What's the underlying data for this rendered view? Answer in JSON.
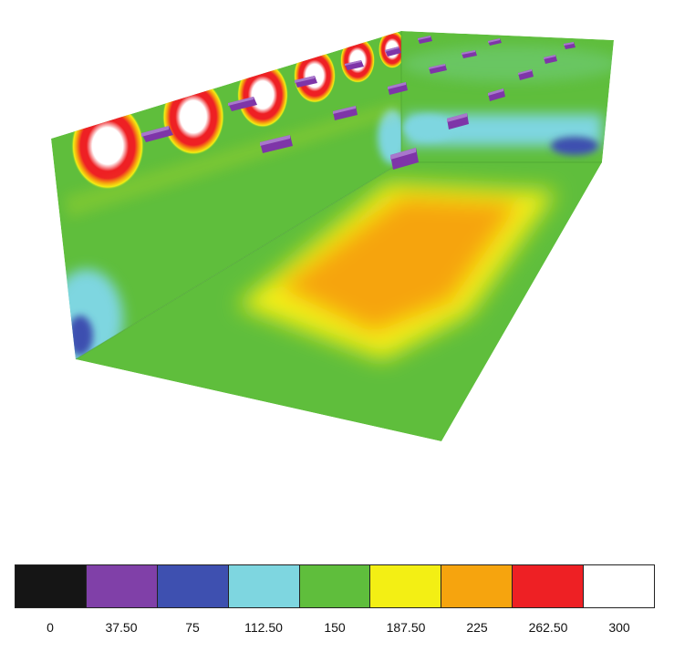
{
  "figure": {
    "palette": {
      "black": "#151515",
      "purple": "#8040a8",
      "blue": "#3e50b0",
      "cyan": "#7ed6e0",
      "green": "#5fbe3c",
      "yellow": "#f3ef14",
      "orange": "#f6a40e",
      "red": "#ee2024",
      "white": "#ffffff"
    },
    "luminaires": {
      "color": "#7e35a8",
      "count_left_wall": 14,
      "count_right_wall": 11
    }
  },
  "legend": {
    "items": [
      {
        "label": "0",
        "color": "#151515"
      },
      {
        "label": "37.50",
        "color": "#8040a8"
      },
      {
        "label": "75",
        "color": "#3e50b0"
      },
      {
        "label": "112.50",
        "color": "#7ed6e0"
      },
      {
        "label": "150",
        "color": "#5fbe3c"
      },
      {
        "label": "187.50",
        "color": "#f3ef14"
      },
      {
        "label": "225",
        "color": "#f6a40e"
      },
      {
        "label": "262.50",
        "color": "#ee2024"
      },
      {
        "label": "300",
        "color": "#ffffff"
      }
    ]
  }
}
